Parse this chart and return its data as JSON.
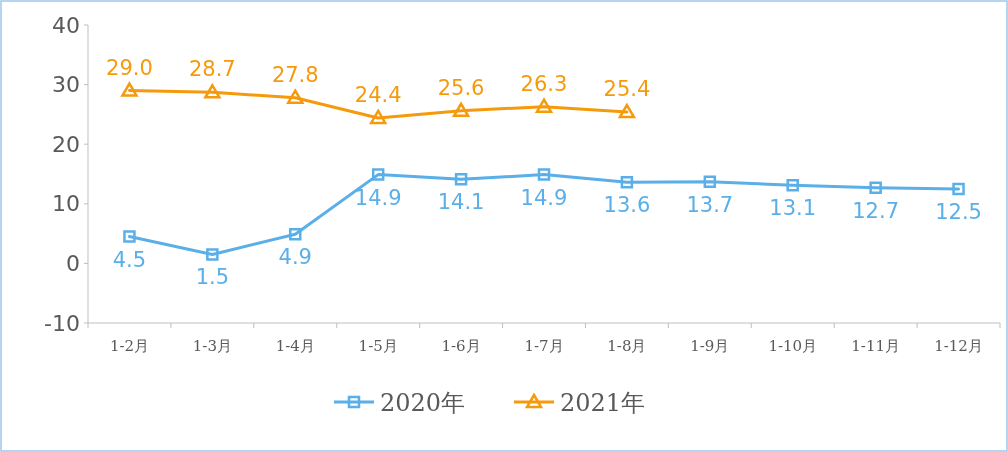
{
  "chart_data": {
    "type": "line",
    "categories": [
      "1-2月",
      "1-3月",
      "1-4月",
      "1-5月",
      "1-6月",
      "1-7月",
      "1-8月",
      "1-9月",
      "1-10月",
      "1-11月",
      "1-12月"
    ],
    "series": [
      {
        "name": "2020年",
        "color": "#5aafe8",
        "marker": "square",
        "values": [
          4.5,
          1.5,
          4.9,
          14.9,
          14.1,
          14.9,
          13.6,
          13.7,
          13.1,
          12.7,
          12.5
        ],
        "value_labels": [
          "4.5",
          "1.5",
          "4.9",
          "14.9",
          "14.1",
          "14.9",
          "13.6",
          "13.7",
          "13.1",
          "12.7",
          "12.5"
        ]
      },
      {
        "name": "2021年",
        "color": "#f59a0c",
        "marker": "triangle",
        "values": [
          29.0,
          28.7,
          27.8,
          24.4,
          25.6,
          26.3,
          25.4,
          null,
          null,
          null,
          null
        ],
        "value_labels": [
          "29.0",
          "28.7",
          "27.8",
          "24.4",
          "25.6",
          "26.3",
          "25.4",
          null,
          null,
          null,
          null
        ]
      }
    ],
    "ylim": [
      -10,
      40
    ],
    "yticks": [
      -10,
      0,
      10,
      20,
      30,
      40
    ],
    "data_labels": true,
    "legend": "bottom",
    "grid": false
  }
}
